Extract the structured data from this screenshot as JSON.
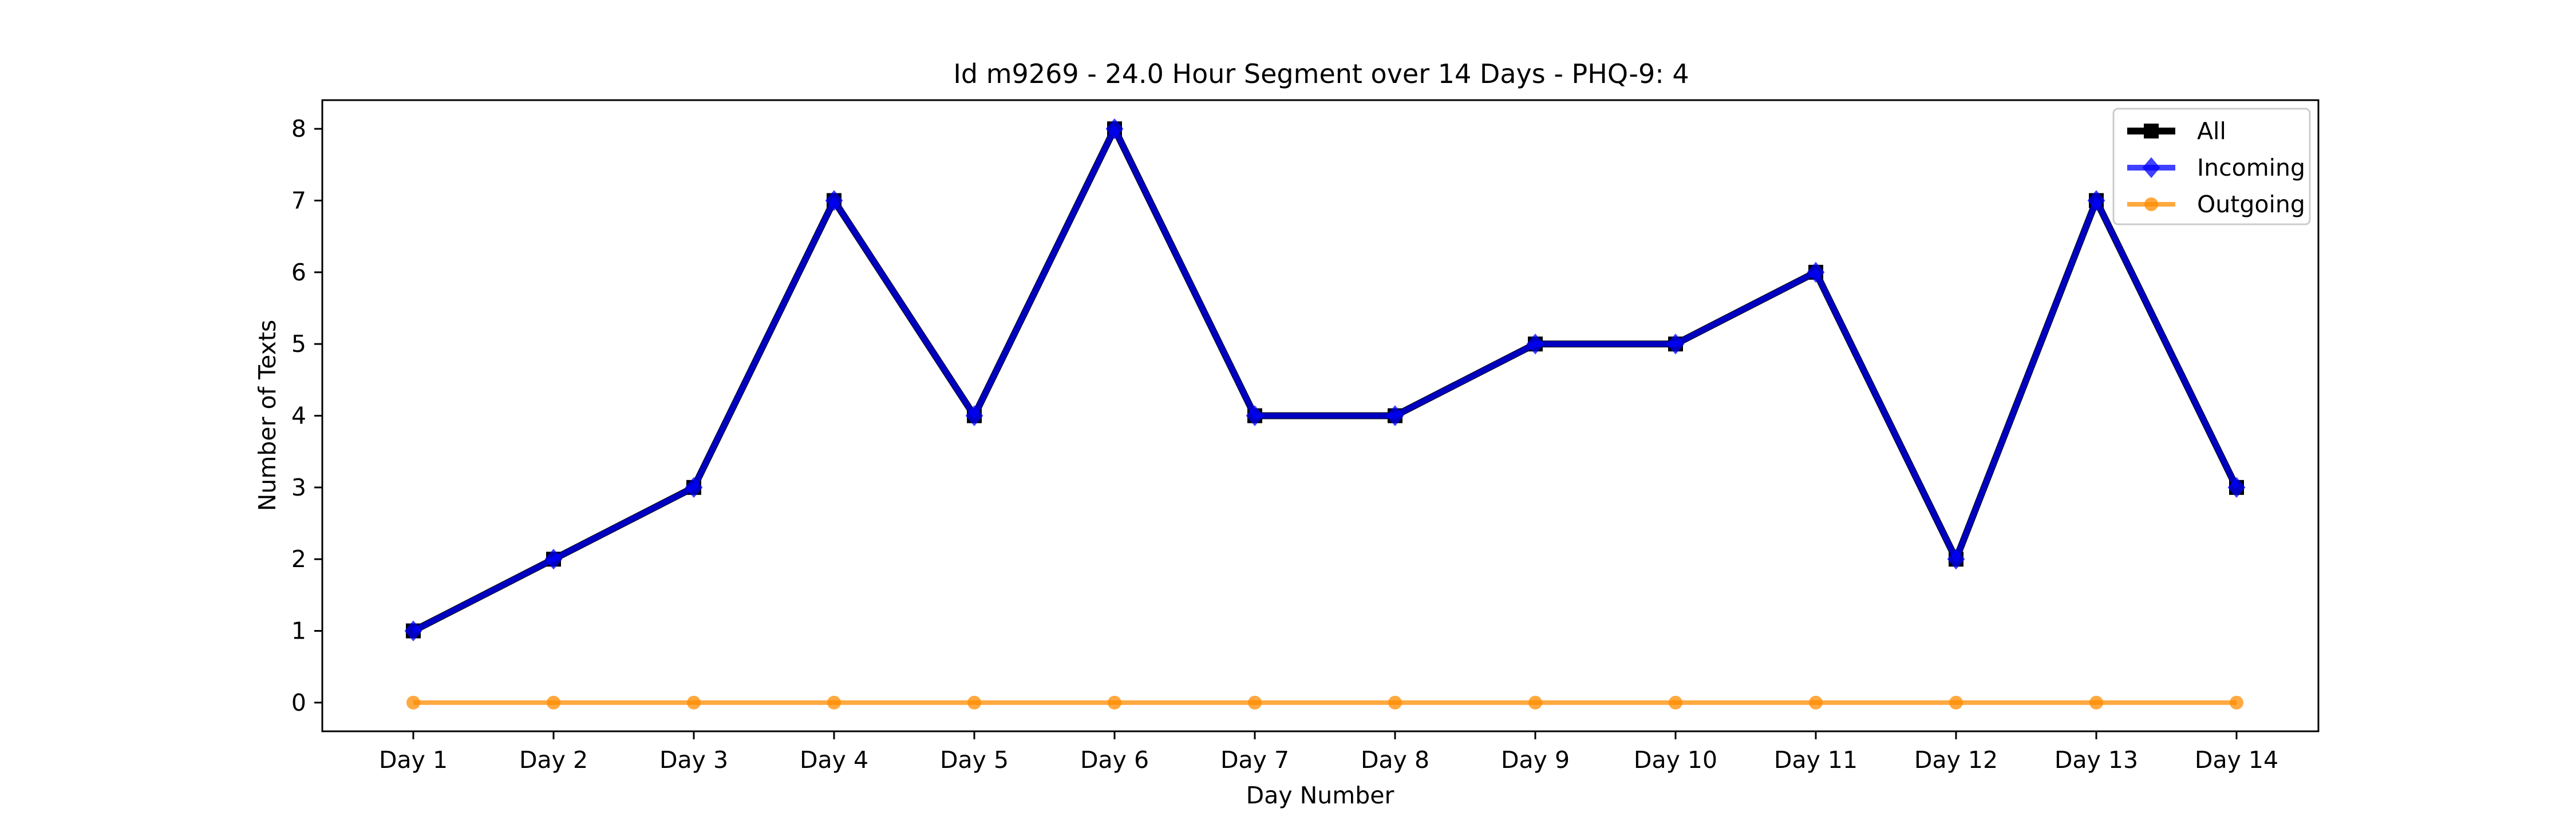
{
  "chart_data": {
    "type": "line",
    "title": "Id m9269 - 24.0 Hour Segment over 14 Days - PHQ-9: 4",
    "xlabel": "Day Number",
    "ylabel": "Number of Texts",
    "categories": [
      "Day 1",
      "Day 2",
      "Day 3",
      "Day 4",
      "Day 5",
      "Day 6",
      "Day 7",
      "Day 8",
      "Day 9",
      "Day 10",
      "Day 11",
      "Day 12",
      "Day 13",
      "Day 14"
    ],
    "ylim": [
      -0.4,
      8.4
    ],
    "yticks": [
      0,
      1,
      2,
      3,
      4,
      5,
      6,
      7,
      8
    ],
    "grid": false,
    "legend_position": "upper right",
    "series": [
      {
        "name": "All",
        "color": "#000000",
        "marker": "square",
        "values": [
          1,
          2,
          3,
          7,
          4,
          8,
          4,
          4,
          5,
          5,
          6,
          2,
          7,
          3
        ]
      },
      {
        "name": "Incoming",
        "color": "#0000ff",
        "marker": "diamond",
        "values": [
          1,
          2,
          3,
          7,
          4,
          8,
          4,
          4,
          5,
          5,
          6,
          2,
          7,
          3
        ]
      },
      {
        "name": "Outgoing",
        "color": "#ff8c00",
        "marker": "circle",
        "values": [
          0,
          0,
          0,
          0,
          0,
          0,
          0,
          0,
          0,
          0,
          0,
          0,
          0,
          0
        ]
      }
    ]
  }
}
